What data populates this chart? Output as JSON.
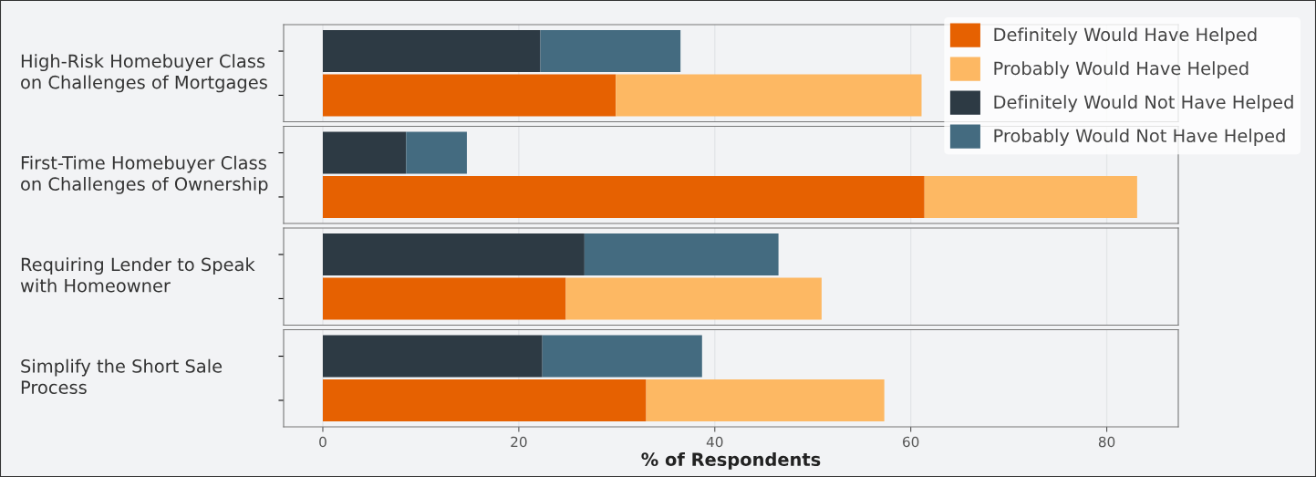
{
  "chart_data": {
    "type": "bar",
    "orientation": "horizontal",
    "stacked": true,
    "xlabel": "% of Respondents",
    "annotations": [
      "High-Risk Homebuyer Class\non Challenges of Mortgages",
      "First-Time Homebuyer Class\non Challenges of Ownership",
      "Requiring Lender to Speak\nwith Homeowner",
      "Simplify the Short Sale\nProcess"
    ],
    "categories": [
      null,
      null,
      null,
      null,
      null,
      null,
      null,
      null
    ],
    "xlim": [
      -4,
      87.3
    ],
    "xticks": [
      0,
      20,
      40,
      60,
      80
    ],
    "grid": "x",
    "legend": "top right",
    "tick_labels": "x",
    "series": [
      {
        "name": "Definitely Would Have Helped",
        "color": "#e66101",
        "values": [
          null,
          29.9,
          null,
          61.4,
          null,
          24.8,
          null,
          33.0
        ]
      },
      {
        "name": "Probably Would Have Helped",
        "color": "#fdb863",
        "values": [
          null,
          31.2,
          null,
          21.7,
          null,
          26.1,
          null,
          24.3
        ]
      },
      {
        "name": "Definitely Would Not Have Helped",
        "color": "#2d3a44",
        "values": [
          22.2,
          null,
          8.5,
          null,
          26.7,
          null,
          22.4,
          null
        ]
      },
      {
        "name": "Probably Would Not Have Helped",
        "color": "#446b80",
        "values": [
          14.3,
          null,
          6.2,
          null,
          19.8,
          null,
          16.3,
          null
        ]
      }
    ]
  }
}
